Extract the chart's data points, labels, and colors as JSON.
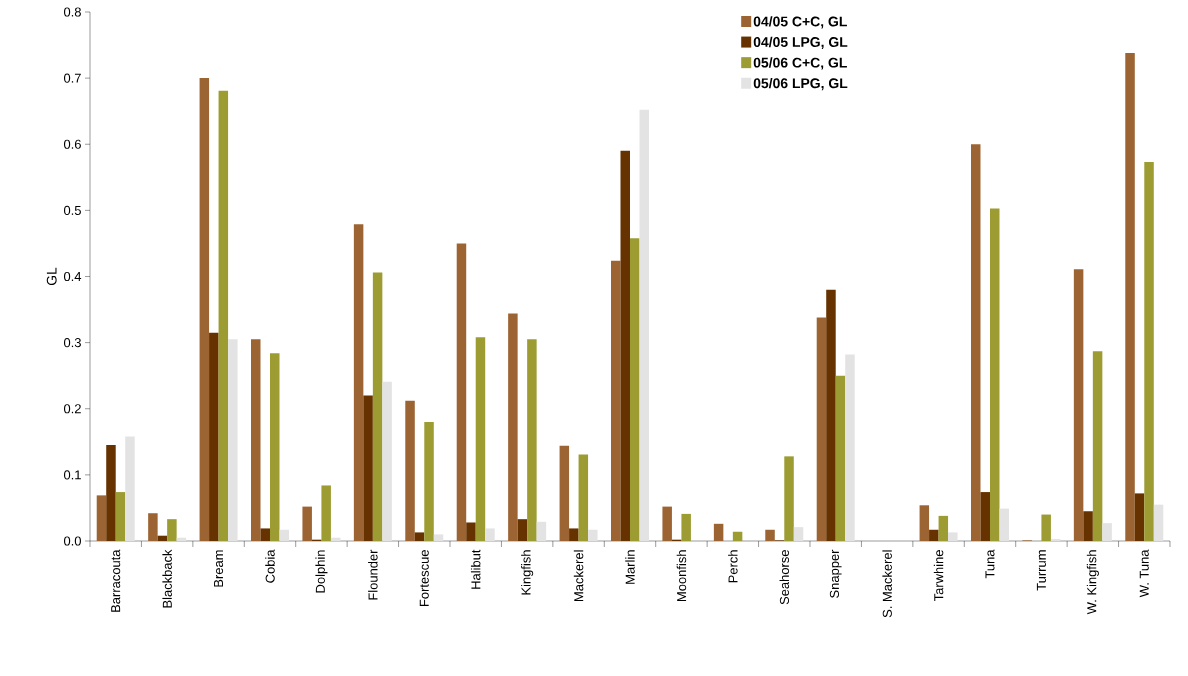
{
  "chart_data": {
    "type": "bar",
    "ylabel": "GL",
    "categories": [
      "Barracouta",
      "Blackback",
      "Bream",
      "Cobia",
      "Dolphin",
      "Flounder",
      "Fortescue",
      "Halibut",
      "Kingfish",
      "Mackerel",
      "Marlin",
      "Moonfish",
      "Perch",
      "Seahorse",
      "Snapper",
      "S. Mackerel",
      "Tarwhine",
      "Tuna",
      "Turrum",
      "W. Kingfish",
      "W. Tuna"
    ],
    "series": [
      {
        "name": "04/05 C+C, GL",
        "color": "#9c6433",
        "values": [
          0.069,
          0.042,
          0.7,
          0.305,
          0.052,
          0.479,
          0.212,
          0.45,
          0.344,
          0.144,
          0.424,
          0.052,
          0.026,
          0.017,
          0.338,
          0,
          0.054,
          0.6,
          0.001,
          0.411,
          0.738
        ]
      },
      {
        "name": "04/05 LPG, GL",
        "color": "#663300",
        "values": [
          0.145,
          0.008,
          0.315,
          0.019,
          0.002,
          0.22,
          0.013,
          0.028,
          0.033,
          0.019,
          0.59,
          0.002,
          0,
          0.001,
          0.38,
          0,
          0.017,
          0.074,
          0,
          0.045,
          0.072
        ]
      },
      {
        "name": "05/06 C+C, GL",
        "color": "#9c9c33",
        "values": [
          0.074,
          0.033,
          0.681,
          0.284,
          0.084,
          0.406,
          0.18,
          0.308,
          0.305,
          0.131,
          0.458,
          0.041,
          0.014,
          0.128,
          0.25,
          0,
          0.038,
          0.503,
          0.04,
          0.287,
          0.573
        ]
      },
      {
        "name": "05/06 LPG, GL",
        "color": "#e3e3e3",
        "values": [
          0.158,
          0.005,
          0.305,
          0.017,
          0.005,
          0.241,
          0.01,
          0.019,
          0.029,
          0.017,
          0.652,
          0,
          0,
          0.021,
          0.282,
          0,
          0.013,
          0.049,
          0.003,
          0.027,
          0.055
        ]
      }
    ],
    "ylim": [
      0,
      0.8
    ],
    "yticks": [
      {
        "value": 0,
        "label": "0.0"
      },
      0.1,
      0.2,
      0.3,
      0.4,
      0.5,
      0.6,
      0.7,
      0.8
    ],
    "legend": "top right"
  }
}
